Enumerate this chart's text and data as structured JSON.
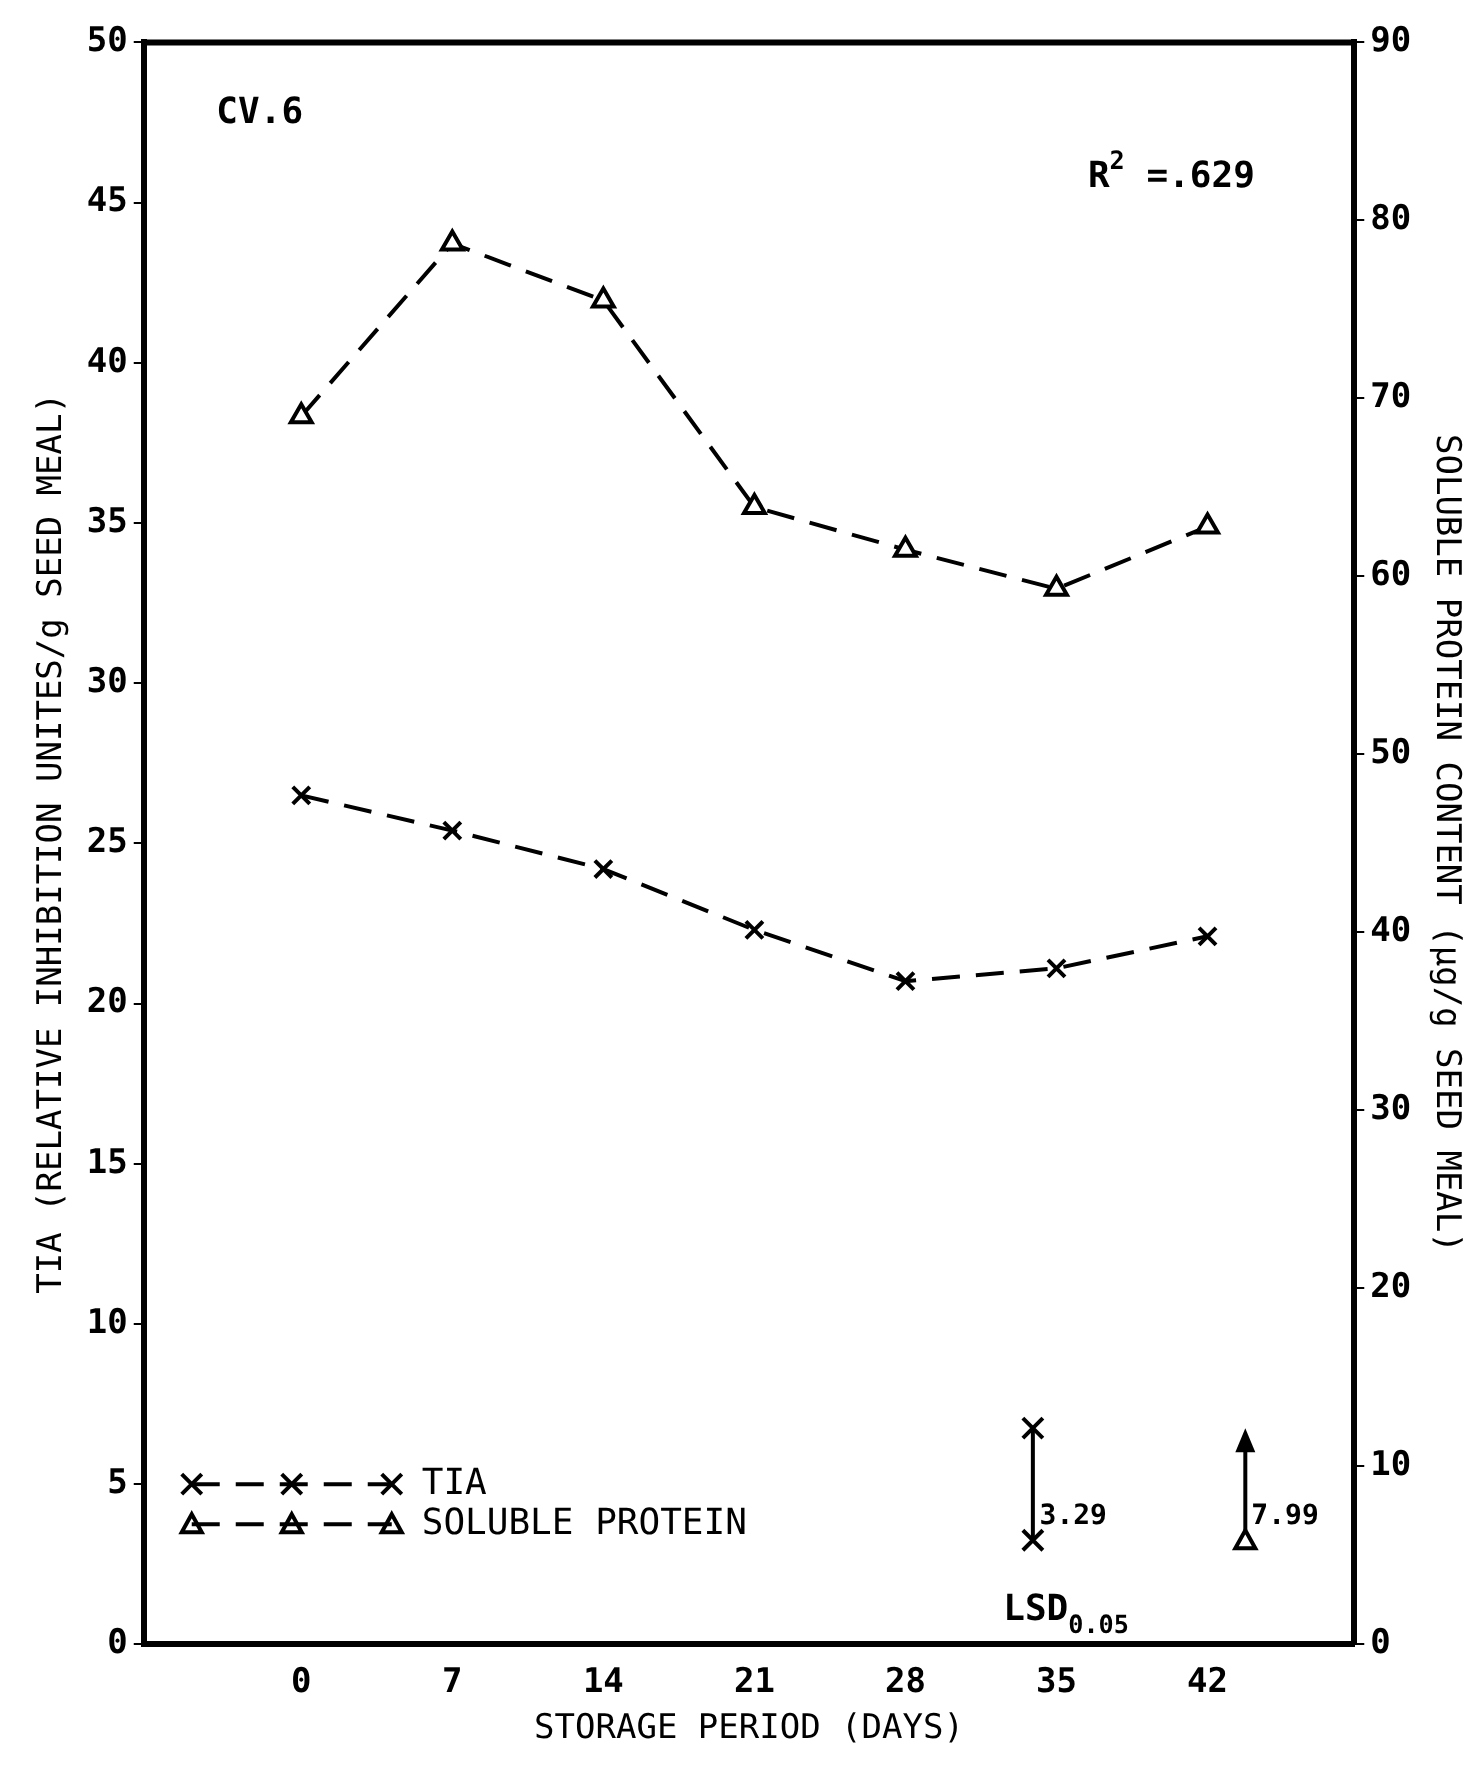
{
  "chart_data": {
    "type": "line",
    "xlabel": "STORAGE PERIOD (DAYS)",
    "ylabel": "TIA (RELATIVE INHIBITION UNITES/g SEED MEAL)",
    "y2label": "SOLUBLE PROTEIN CONTENT (µg/g SEED MEAL)",
    "x": [
      0,
      7,
      14,
      21,
      28,
      35,
      42
    ],
    "series": [
      {
        "name": "TIA",
        "color": "#000000",
        "values": [
          26.5,
          25.4,
          24.2,
          22.3,
          20.7,
          21.1,
          22.1
        ],
        "marker": "cross",
        "line_style": "dashed"
      },
      {
        "name": "SOLUBLE PROTEIN",
        "color": "#000000",
        "values": [
          69.0,
          78.7,
          75.5,
          63.9,
          61.5,
          59.3,
          62.8
        ],
        "marker": "triangle",
        "line_style": "dashed",
        "axis": "y2"
      }
    ],
    "xlim": [
      -7.3,
      48.8
    ],
    "xticks": [
      0,
      7,
      14,
      21,
      28,
      35,
      42
    ],
    "ylim": [
      0,
      50
    ],
    "yticks": [
      0,
      5,
      10,
      15,
      20,
      25,
      30,
      35,
      40,
      45,
      50
    ],
    "y2lim": [
      0,
      90
    ],
    "y2ticks": [
      0,
      10,
      20,
      30,
      40,
      50,
      60,
      70,
      80,
      90
    ],
    "grid": false,
    "legend": "bottom left",
    "annotations": [
      "CV.6",
      "R$^{2}$ =.629",
      "3.29",
      "7.99",
      "LSD$_{0.05}$"
    ]
  }
}
